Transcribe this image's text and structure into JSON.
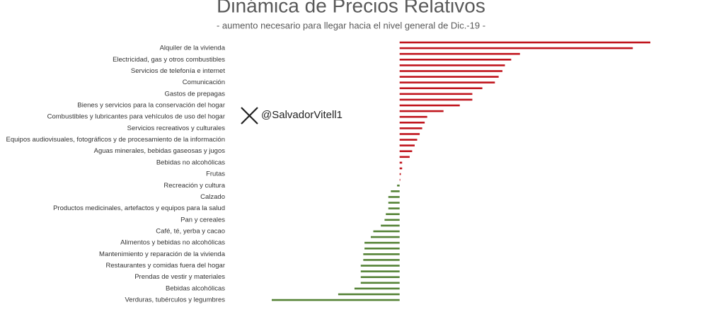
{
  "chart_data": {
    "type": "hbar",
    "title": "Dinámica de Precios Relativos",
    "subtitle": "- aumento necesario para llegar hacia el nivel general de Dic.-19 -",
    "watermark": "@SalvadorVitell1",
    "categories": [
      null,
      "Alquiler de la vivienda",
      null,
      "Electricidad, gas y otros combustibles",
      null,
      "Servicios  de telefonía e internet",
      null,
      "Comunicación",
      null,
      "Gastos de prepagas",
      null,
      "Bienes y servicios para la conservación del hogar",
      null,
      "Combustibles y lubricantes para vehículos de uso del hogar",
      null,
      "Servicios recreativos y culturales",
      null,
      "Equipos audiovisuales, fotográficos y de procesamiento de la información",
      null,
      "Aguas minerales, bebidas gaseosas y jugos",
      null,
      "Bebidas no alcohólicas",
      null,
      "Frutas",
      null,
      "Recreación y cultura",
      null,
      "Calzado",
      null,
      "Productos medicinales, artefactos y equipos para la salud",
      null,
      "Pan y cereales",
      null,
      "Café, té, yerba y cacao",
      null,
      "Alimentos y bebidas no alcohólicas",
      null,
      "Mantenimiento y reparación de la vivienda",
      null,
      "Restaurantes y comidas fuera del hogar",
      null,
      "Prendas de vestir y materiales",
      null,
      "Bebidas alcohólicas",
      null,
      "Verduras, tubérculos y legumbres"
    ],
    "values": [
      200,
      186,
      96,
      89,
      84,
      82,
      79,
      76,
      66,
      58,
      58,
      48,
      35,
      22,
      20,
      18,
      16,
      14,
      12,
      10,
      8,
      2,
      2,
      1,
      0.5,
      -2,
      -7,
      -9,
      -9,
      -9,
      -11,
      -12,
      -15,
      -21,
      -23,
      -28,
      -28,
      -29,
      -29,
      -31,
      -31,
      -31,
      -31,
      -36,
      -49,
      -102
    ],
    "positive_color": "#c0141c",
    "negative_color": "#548235",
    "xlim": [
      -102,
      200
    ]
  }
}
